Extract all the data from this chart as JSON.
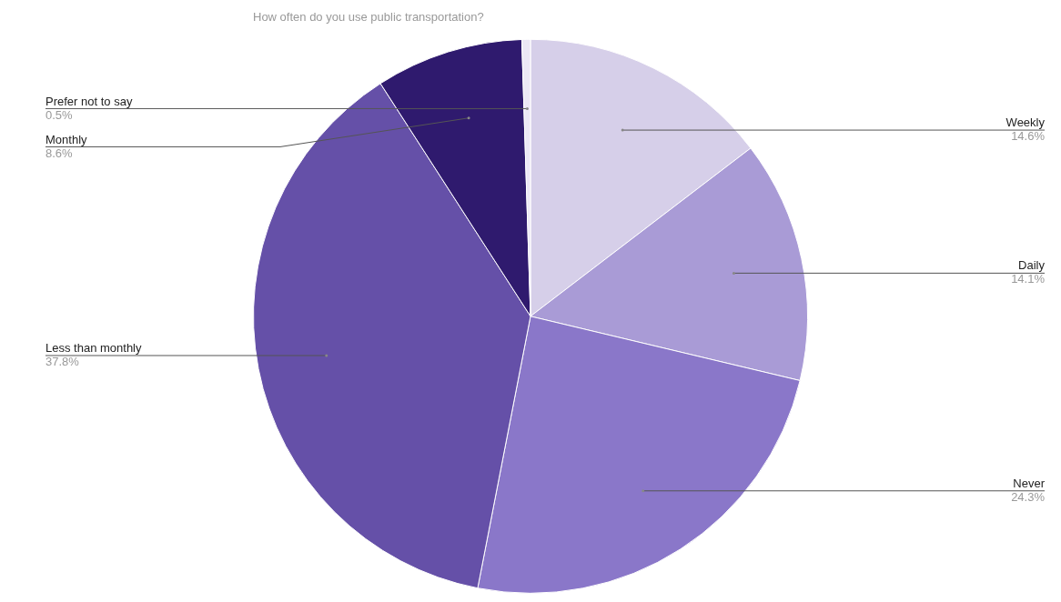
{
  "chart_data": {
    "type": "pie",
    "title": "How often do you use public transportation?",
    "categories": [
      "Weekly",
      "Daily",
      "Never",
      "Less than monthly",
      "Monthly",
      "Prefer not to say"
    ],
    "values": [
      14.6,
      14.1,
      24.3,
      37.8,
      8.6,
      0.5
    ],
    "value_labels": [
      "14.6%",
      "14.1%",
      "24.3%",
      "37.8%",
      "8.6%",
      "0.5%"
    ],
    "colors": [
      "#d6cfe9",
      "#a99bd6",
      "#8a77c9",
      "#6550a8",
      "#2f1a6e",
      "#ece8f5"
    ],
    "legend": false
  }
}
